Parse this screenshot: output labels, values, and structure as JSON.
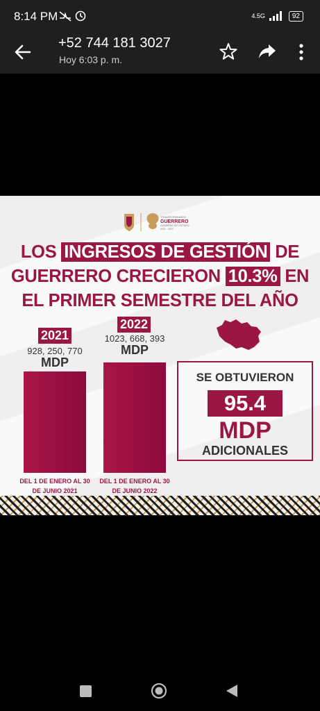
{
  "status_bar": {
    "time": "8:14 PM",
    "network": "4.5G",
    "battery": "92",
    "icons": [
      "mute-icon",
      "alarm-icon",
      "signal-icon",
      "battery-icon"
    ]
  },
  "app_bar": {
    "title": "+52 744 181 3027",
    "subtitle": "Hoy 6:03 p. m.",
    "icons": [
      "back-arrow-icon",
      "star-icon",
      "share-icon",
      "more-vert-icon"
    ]
  },
  "infographic": {
    "logo_text": [
      "TRANSFORMANDO",
      "GUERRERO",
      "GOBIERNO DEL ESTADO",
      "2021 · 2027"
    ],
    "headline": {
      "line1_pre": "LOS",
      "line1_highlight": "INGRESOS DE GESTIÓN",
      "line1_post": "DE",
      "line2_pre": "GUERRERO CRECIERON",
      "line2_highlight": "10.3%",
      "line2_post": "EN",
      "line3": "EL PRIMER SEMESTRE DEL AÑO"
    },
    "bars": [
      {
        "year": "2021",
        "amount": "928, 250, 770",
        "unit": "MDP",
        "period_1": "DEL 1 DE ENERO AL 30",
        "period_2": "DE JUNIO 2021"
      },
      {
        "year": "2022",
        "amount": "1023, 668, 393",
        "unit": "MDP",
        "period_1": "DEL 1 DE ENERO AL 30",
        "period_2": "DE JUNIO 2022"
      }
    ],
    "result": {
      "line1": "SE OBTUVIERON",
      "value": "95.4",
      "unit": "MDP",
      "line4": "ADICIONALES"
    },
    "colors": {
      "primary": "#9b1743",
      "background": "#f1eef0"
    }
  },
  "nav_bar": {
    "icons": [
      "recents-icon",
      "home-icon",
      "back-icon"
    ]
  }
}
